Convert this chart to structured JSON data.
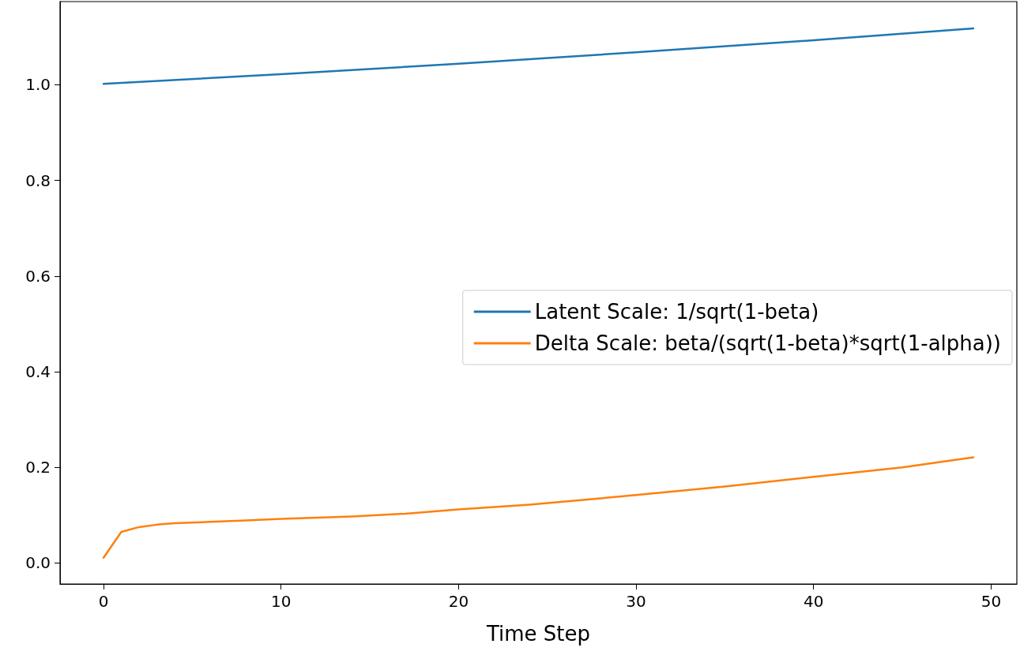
{
  "chart_data": {
    "type": "line",
    "xlabel": "Time Step",
    "series": [
      {
        "name": "Latent Scale: 1/sqrt(1-beta)",
        "color": "#1f77b4",
        "x": [
          0,
          10,
          20,
          30,
          40,
          49
        ],
        "values": [
          1.002,
          1.022,
          1.044,
          1.068,
          1.093,
          1.118
        ]
      },
      {
        "name": "Delta Scale: beta/(sqrt(1-beta)*sqrt(1-alpha))",
        "color": "#ff7f0e",
        "x": [
          0,
          1,
          2,
          3,
          4,
          6,
          8,
          10,
          14,
          17,
          20,
          24,
          28,
          30,
          35,
          40,
          45,
          49
        ],
        "values": [
          0.011,
          0.065,
          0.075,
          0.08,
          0.083,
          0.086,
          0.089,
          0.092,
          0.097,
          0.103,
          0.112,
          0.122,
          0.135,
          0.142,
          0.16,
          0.18,
          0.2,
          0.221
        ]
      }
    ],
    "xlim": [
      -2.45,
      51.45
    ],
    "xticks": [
      0,
      10,
      20,
      30,
      40,
      50
    ],
    "ylim": [
      -0.044,
      1.174
    ],
    "yticks": [
      {
        "value": 0,
        "label": "0.0"
      },
      {
        "value": 0.2,
        "label": "0.2"
      },
      {
        "value": 0.4,
        "label": "0.4"
      },
      {
        "value": 0.6,
        "label": "0.6"
      },
      {
        "value": 0.8,
        "label": "0.8"
      },
      {
        "value": 1,
        "label": "1.0"
      }
    ],
    "grid": false,
    "legend": "right",
    "marker": "none",
    "line_style": "solid"
  }
}
